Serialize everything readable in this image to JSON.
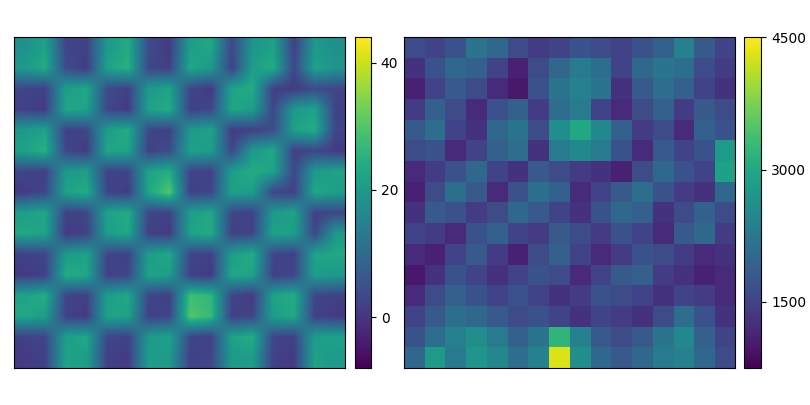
{
  "chart_data": [
    {
      "type": "heatmap",
      "color": "viridis",
      "tick_labels": false,
      "colorbar_range": [
        -8,
        44
      ],
      "colorbar_ticks": [
        0,
        20,
        40
      ],
      "cells": [
        [
          18,
          22,
          3,
          2,
          20,
          24,
          4,
          1,
          21,
          23,
          3,
          19,
          22,
          2,
          20,
          18
        ],
        [
          20,
          24,
          4,
          1,
          22,
          25,
          3,
          2,
          23,
          20,
          2,
          21,
          24,
          3,
          22,
          19
        ],
        [
          3,
          2,
          21,
          23,
          4,
          2,
          20,
          22,
          3,
          1,
          22,
          24,
          2,
          1,
          4,
          3
        ],
        [
          2,
          1,
          23,
          22,
          3,
          1,
          22,
          24,
          2,
          3,
          23,
          21,
          3,
          20,
          22,
          2
        ],
        [
          20,
          22,
          2,
          3,
          21,
          24,
          3,
          2,
          20,
          22,
          1,
          2,
          4,
          22,
          24,
          3
        ],
        [
          22,
          25,
          3,
          1,
          23,
          22,
          2,
          4,
          22,
          21,
          3,
          20,
          23,
          2,
          3,
          1
        ],
        [
          3,
          2,
          20,
          21,
          2,
          3,
          22,
          24,
          3,
          2,
          21,
          24,
          22,
          3,
          20,
          22
        ],
        [
          1,
          3,
          22,
          24,
          3,
          1,
          23,
          30,
          2,
          3,
          22,
          21,
          3,
          2,
          23,
          21
        ],
        [
          21,
          23,
          2,
          3,
          22,
          24,
          3,
          2,
          21,
          23,
          3,
          2,
          20,
          22,
          2,
          3
        ],
        [
          23,
          22,
          1,
          2,
          21,
          23,
          2,
          1,
          22,
          24,
          2,
          3,
          22,
          21,
          3,
          20
        ],
        [
          2,
          3,
          20,
          22,
          3,
          2,
          21,
          23,
          3,
          2,
          21,
          24,
          3,
          2,
          22,
          23
        ],
        [
          1,
          2,
          24,
          23,
          2,
          3,
          22,
          21,
          2,
          1,
          23,
          22,
          2,
          3,
          21,
          20
        ],
        [
          22,
          24,
          3,
          2,
          21,
          23,
          3,
          2,
          28,
          26,
          3,
          1,
          22,
          24,
          3,
          2
        ],
        [
          23,
          21,
          2,
          1,
          22,
          22,
          2,
          3,
          30,
          27,
          2,
          3,
          21,
          23,
          2,
          1
        ],
        [
          2,
          3,
          21,
          23,
          3,
          2,
          20,
          22,
          3,
          2,
          22,
          24,
          3,
          2,
          21,
          22
        ],
        [
          1,
          2,
          22,
          21,
          2,
          1,
          21,
          20,
          2,
          3,
          20,
          21,
          2,
          1,
          22,
          20
        ]
      ]
    },
    {
      "type": "heatmap",
      "color": "viridis",
      "tick_labels": false,
      "colorbar_range": [
        750,
        4500
      ],
      "colorbar_ticks": [
        1500,
        3000,
        4500
      ],
      "cells": [
        [
          1600,
          1500,
          1700,
          2200,
          2000,
          1600,
          1400,
          1500,
          1700,
          1600,
          1500,
          1700,
          1900,
          2400,
          1800,
          1500
        ],
        [
          1300,
          1700,
          2000,
          1900,
          1500,
          1100,
          1600,
          2000,
          2300,
          2100,
          1500,
          2000,
          2200,
          2100,
          1600,
          1400
        ],
        [
          1100,
          1500,
          1800,
          1600,
          1200,
          1000,
          1700,
          2200,
          2400,
          2200,
          1300,
          1800,
          2100,
          1900,
          1500,
          1300
        ],
        [
          1400,
          1900,
          1600,
          1200,
          1700,
          1900,
          1400,
          2100,
          2300,
          1500,
          1200,
          1600,
          1900,
          1400,
          1800,
          1600
        ],
        [
          1800,
          2100,
          1500,
          1300,
          2000,
          2200,
          1600,
          2600,
          3000,
          2500,
          1900,
          1400,
          1600,
          1200,
          1900,
          1700
        ],
        [
          1600,
          1700,
          1200,
          1500,
          1900,
          2100,
          1300,
          2300,
          2500,
          2300,
          1700,
          1200,
          1800,
          1500,
          1700,
          2800
        ],
        [
          1200,
          1400,
          1700,
          2000,
          1500,
          1300,
          1800,
          1600,
          1400,
          1300,
          1100,
          1600,
          2000,
          1700,
          1500,
          2900
        ],
        [
          1100,
          1600,
          2100,
          1800,
          1200,
          1700,
          2100,
          1900,
          1200,
          1500,
          1800,
          2100,
          1700,
          1400,
          1300,
          2000
        ],
        [
          1300,
          1800,
          1700,
          1400,
          1600,
          2000,
          1800,
          1500,
          1300,
          1700,
          2000,
          1900,
          1300,
          1600,
          1900,
          1600
        ],
        [
          1500,
          1400,
          1200,
          1700,
          1900,
          1500,
          1400,
          1800,
          1600,
          1400,
          1700,
          1500,
          1200,
          1800,
          2000,
          1400
        ],
        [
          1200,
          1100,
          1500,
          1800,
          1400,
          1100,
          1600,
          1900,
          1500,
          1200,
          1400,
          1700,
          1600,
          1400,
          1200,
          1300
        ],
        [
          1000,
          1300,
          1700,
          1500,
          1300,
          1500,
          1700,
          1600,
          1200,
          1500,
          1800,
          1900,
          1400,
          1300,
          1100,
          1200
        ],
        [
          1200,
          1600,
          1900,
          1700,
          1500,
          1700,
          1500,
          1300,
          1400,
          1700,
          1600,
          1500,
          1300,
          1500,
          1400,
          1200
        ],
        [
          1500,
          1800,
          2100,
          2000,
          1800,
          1600,
          1700,
          1500,
          1300,
          1500,
          1400,
          1300,
          1600,
          2100,
          1700,
          1300
        ],
        [
          1700,
          2100,
          2400,
          2600,
          2300,
          1900,
          2200,
          3200,
          2400,
          1800,
          1600,
          1800,
          2200,
          2500,
          1900,
          1500
        ],
        [
          2000,
          2800,
          2300,
          2700,
          2500,
          2100,
          2400,
          4300,
          2600,
          2000,
          1800,
          2000,
          2300,
          2400,
          2000,
          1600
        ]
      ]
    }
  ]
}
